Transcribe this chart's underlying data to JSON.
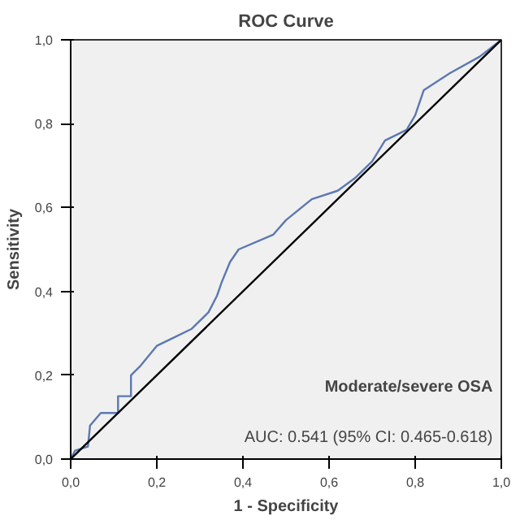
{
  "chart_data": {
    "type": "line",
    "title": "ROC Curve",
    "xlabel": "1 - Specificity",
    "ylabel": "Sensitivity",
    "xlim": [
      0,
      1
    ],
    "ylim": [
      0,
      1
    ],
    "xticks": [
      {
        "value": 0,
        "label": "0,0"
      },
      {
        "value": 0.2,
        "label": "0,2"
      },
      {
        "value": 0.4,
        "label": "0,4"
      },
      {
        "value": 0.6,
        "label": "0,6"
      },
      {
        "value": 0.8,
        "label": "0,8"
      },
      {
        "value": 1,
        "label": "1,0"
      }
    ],
    "yticks": [
      {
        "value": 0,
        "label": "0,0"
      },
      {
        "value": 0.2,
        "label": "0,2"
      },
      {
        "value": 0.4,
        "label": "0,4"
      },
      {
        "value": 0.6,
        "label": "0,6"
      },
      {
        "value": 0.8,
        "label": "0,8"
      },
      {
        "value": 1,
        "label": "1,0"
      }
    ],
    "grid": false,
    "series": [
      {
        "color": "#5b78b0",
        "x": [
          0,
          0.01,
          0.04,
          0.045,
          0.07,
          0.11,
          0.11,
          0.14,
          0.14,
          0.16,
          0.2,
          0.24,
          0.28,
          0.32,
          0.34,
          0.35,
          0.37,
          0.39,
          0.47,
          0.5,
          0.56,
          0.62,
          0.66,
          0.7,
          0.73,
          0.78,
          0.8,
          0.82,
          0.88,
          0.95,
          1
        ],
        "values": [
          0,
          0.02,
          0.03,
          0.08,
          0.11,
          0.11,
          0.15,
          0.15,
          0.2,
          0.22,
          0.27,
          0.29,
          0.31,
          0.35,
          0.39,
          0.42,
          0.47,
          0.5,
          0.535,
          0.57,
          0.62,
          0.64,
          0.67,
          0.71,
          0.76,
          0.785,
          0.82,
          0.88,
          0.92,
          0.96,
          1
        ]
      },
      {
        "color": "#000000",
        "x": [
          0,
          1
        ],
        "values": [
          0,
          1
        ]
      }
    ],
    "annotations": [
      "Moderate/severe OSA",
      "AUC: 0.541 (95% CI: 0.465-0.618)"
    ]
  }
}
